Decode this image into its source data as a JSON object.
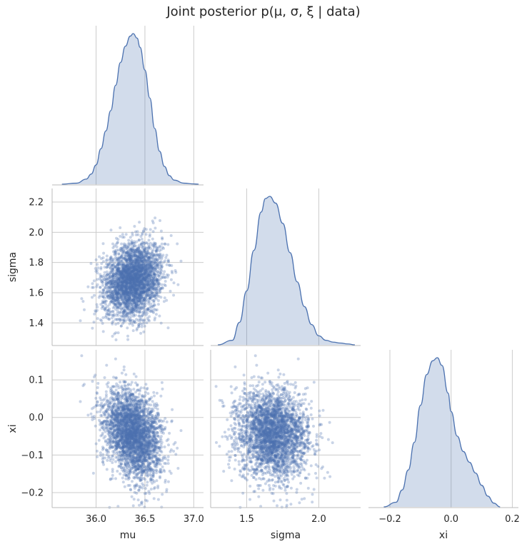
{
  "chart_data": {
    "type": "scatter",
    "title": "Joint posterior  p(μ, σ, ξ | data)",
    "variables": [
      "mu",
      "sigma",
      "xi"
    ],
    "xlabels": [
      "mu",
      "sigma",
      "xi"
    ],
    "ylabels": [
      "",
      "sigma",
      "xi"
    ],
    "diag": "kde",
    "grid": true,
    "corner": true,
    "color": "#4c72b0",
    "grid_color": "#cccccc",
    "axes": {
      "mu": {
        "range": [
          35.55,
          37.1
        ],
        "ticks": [
          36.0,
          36.5,
          37.0
        ],
        "tick_labels": [
          "36.0",
          "36.5",
          "37.0"
        ]
      },
      "sigma": {
        "range": [
          1.25,
          2.29
        ],
        "xticks": [
          1.5,
          2.0
        ],
        "xtick_labels": [
          "1.5",
          "2.0"
        ],
        "yticks": [
          1.4,
          1.6,
          1.8,
          2.0,
          2.2
        ],
        "ytick_labels": [
          "1.4",
          "1.6",
          "1.8",
          "2.0",
          "2.2"
        ]
      },
      "xi": {
        "range": [
          -0.24,
          0.18
        ],
        "xrange": [
          -0.27,
          0.22
        ],
        "xticks": [
          -0.2,
          0.0,
          0.2
        ],
        "xtick_labels": [
          "−0.2",
          "0.0",
          "0.2"
        ],
        "yticks": [
          -0.2,
          -0.1,
          0.0,
          0.1
        ],
        "ytick_labels": [
          "−0.2",
          "−0.1",
          "0.0",
          "0.1"
        ]
      }
    },
    "kde": {
      "mu": {
        "x": [
          35.65,
          35.8,
          35.9,
          35.95,
          36.0,
          36.05,
          36.1,
          36.15,
          36.2,
          36.25,
          36.3,
          36.35,
          36.38,
          36.42,
          36.45,
          36.5,
          36.55,
          36.6,
          36.65,
          36.7,
          36.75,
          36.8,
          36.9,
          37.0,
          37.05
        ],
        "y": [
          0.0,
          0.02,
          0.1,
          0.2,
          0.38,
          0.7,
          1.05,
          1.45,
          1.95,
          2.4,
          2.72,
          2.92,
          2.97,
          2.88,
          2.7,
          2.25,
          1.7,
          1.1,
          0.65,
          0.35,
          0.17,
          0.08,
          0.02,
          0.005,
          0.0
        ]
      },
      "sigma": {
        "x": [
          1.3,
          1.4,
          1.45,
          1.5,
          1.55,
          1.6,
          1.63,
          1.66,
          1.7,
          1.75,
          1.8,
          1.85,
          1.9,
          1.95,
          2.0,
          2.05,
          2.1,
          2.15,
          2.2,
          2.25
        ],
        "y": [
          0.0,
          0.1,
          0.5,
          1.2,
          2.1,
          2.95,
          3.25,
          3.3,
          3.15,
          2.7,
          2.05,
          1.4,
          0.85,
          0.45,
          0.2,
          0.1,
          0.06,
          0.04,
          0.02,
          0.0
        ]
      },
      "xi": {
        "x": [
          -0.22,
          -0.18,
          -0.16,
          -0.14,
          -0.12,
          -0.1,
          -0.08,
          -0.06,
          -0.045,
          -0.03,
          -0.01,
          0.0,
          0.02,
          0.04,
          0.06,
          0.08,
          0.1,
          0.12,
          0.14,
          0.16
        ],
        "y": [
          0.0,
          0.15,
          0.55,
          1.2,
          2.1,
          3.3,
          4.3,
          4.75,
          4.85,
          4.6,
          3.7,
          3.1,
          2.3,
          1.8,
          1.45,
          1.1,
          0.7,
          0.35,
          0.12,
          0.0
        ]
      }
    },
    "samples": {
      "n": 3000,
      "mu": {
        "mean": 36.38,
        "sd": 0.15
      },
      "sigma": {
        "mean": 1.685,
        "sd": 0.125
      },
      "xi": {
        "mean": -0.045,
        "sd": 0.058
      },
      "corr": {
        "mu_sigma": 0.2,
        "mu_xi": -0.3,
        "sigma_xi": -0.15
      }
    }
  }
}
